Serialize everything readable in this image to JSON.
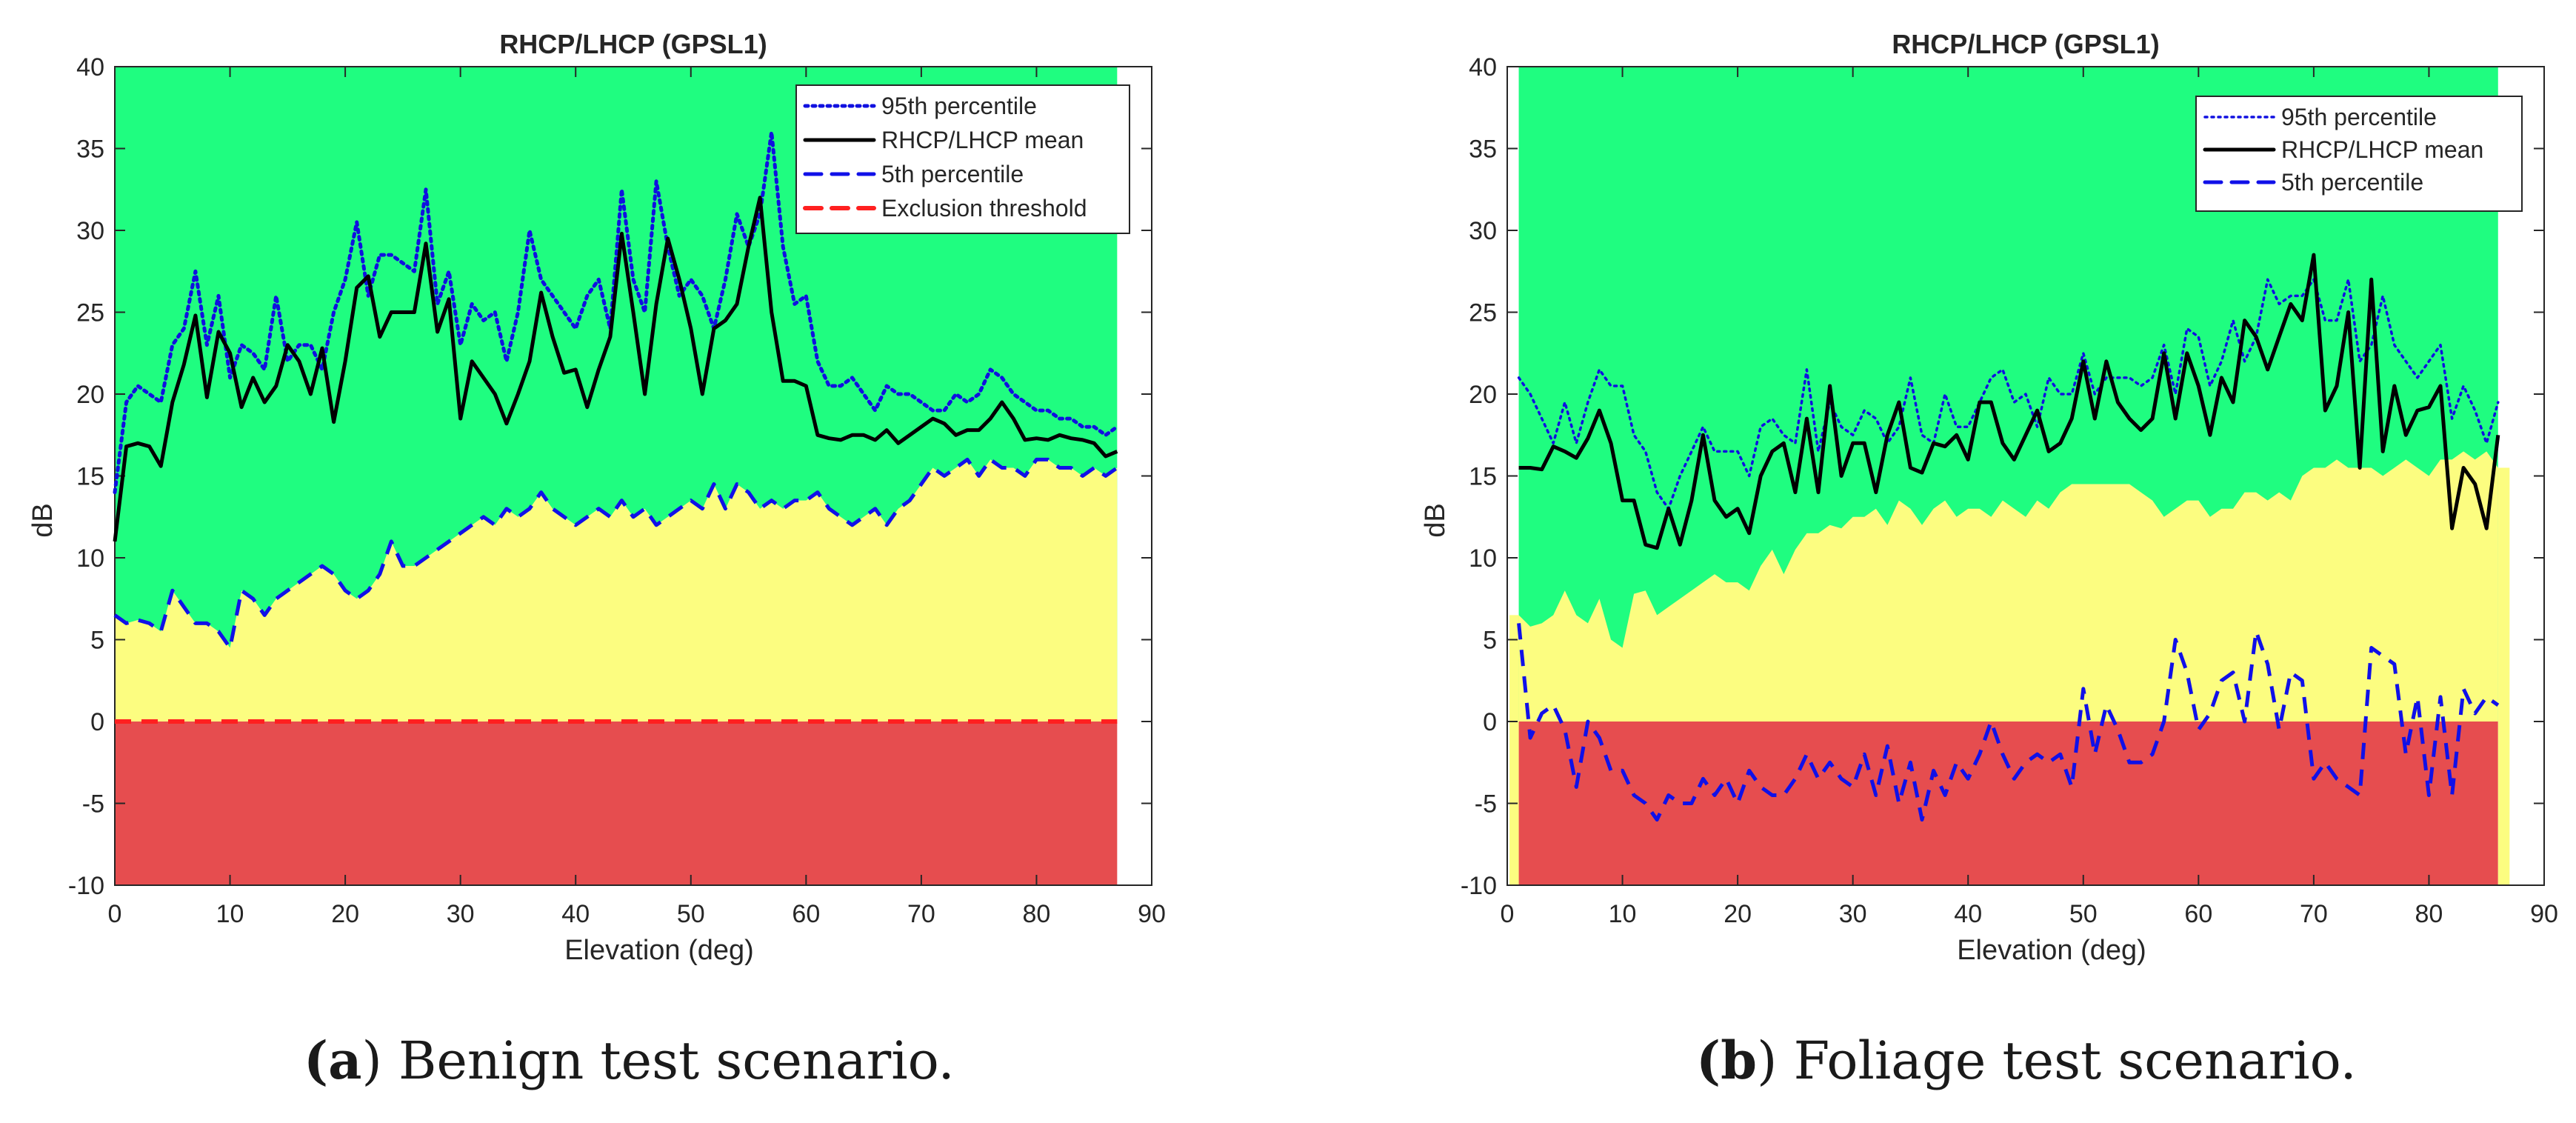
{
  "colors": {
    "green": "#1ffd80",
    "yellow": "#fcfd80",
    "red": "#e64d4f",
    "p95": "#1010e0",
    "mean": "#000000",
    "p5": "#1010e8",
    "threshold": "#ff2020"
  },
  "captions": {
    "a_letter": "(a",
    "a_text": ") Benign test scenario.",
    "b_letter": "(b",
    "b_text": ") Foliage test scenario."
  },
  "chart_data": [
    {
      "type": "line",
      "title": "RHCP/LHCP (GPSL1)",
      "xlabel": "Elevation (deg)",
      "ylabel": "dB",
      "xlim": [
        0,
        90
      ],
      "ylim": [
        -10,
        40
      ],
      "xticks": [
        "0",
        "10",
        "20",
        "30",
        "40",
        "50",
        "60",
        "70",
        "80",
        "90"
      ],
      "yticks": [
        "-10",
        "-5",
        "0",
        "5",
        "10",
        "15",
        "20",
        "25",
        "30",
        "35",
        "40"
      ],
      "legend": [
        "95th percentile",
        "RHCP/LHCP mean",
        "5th percentile",
        "Exclusion threshold"
      ],
      "legend_position": "top-right",
      "shaded_xrange": [
        0,
        87
      ],
      "threshold": 0,
      "x": [
        0,
        1,
        2,
        3,
        4,
        5,
        6,
        7,
        8,
        9,
        10,
        11,
        12,
        13,
        14,
        15,
        16,
        17,
        18,
        19,
        20,
        21,
        22,
        23,
        24,
        25,
        26,
        27,
        28,
        29,
        30,
        31,
        32,
        33,
        34,
        35,
        36,
        37,
        38,
        39,
        40,
        41,
        42,
        43,
        44,
        45,
        46,
        47,
        48,
        49,
        50,
        51,
        52,
        53,
        54,
        55,
        56,
        57,
        58,
        59,
        60,
        61,
        62,
        63,
        64,
        65,
        66,
        67,
        68,
        69,
        70,
        71,
        72,
        73,
        74,
        75,
        76,
        77,
        78,
        79,
        80,
        81,
        82,
        83,
        84,
        85,
        86,
        87
      ],
      "series": [
        {
          "name": "95th percentile",
          "style": "dotted",
          "values": [
            14,
            19.5,
            20.5,
            20,
            19.5,
            23,
            24,
            27.5,
            23,
            26,
            21,
            23,
            22.5,
            21.5,
            26,
            22,
            23,
            23,
            21.5,
            25,
            27,
            30.5,
            26,
            28.5,
            28.5,
            28,
            27.5,
            32.5,
            25.5,
            27.5,
            23,
            25.5,
            24.5,
            25,
            22,
            25,
            30,
            27,
            26,
            25,
            24,
            26,
            27,
            24,
            32.5,
            27,
            25,
            33,
            29,
            26,
            27,
            26,
            24,
            27,
            31,
            29,
            31,
            36,
            29,
            25.5,
            26,
            22,
            20.5,
            20.5,
            21,
            20,
            19,
            20.5,
            20,
            20,
            19.5,
            19,
            19,
            20,
            19.5,
            20,
            21.5,
            21,
            20,
            19.5,
            19,
            19,
            18.5,
            18.5,
            18,
            18,
            17.5,
            18
          ]
        },
        {
          "name": "RHCP/LHCP mean",
          "style": "solid",
          "values": [
            11,
            16.8,
            17,
            16.8,
            15.6,
            19.5,
            21.8,
            24.8,
            19.8,
            23.8,
            22.5,
            19.2,
            21,
            19.5,
            20.5,
            23,
            22,
            20,
            22.8,
            18.3,
            22,
            26.5,
            27.2,
            23.5,
            25,
            25,
            25,
            29.2,
            23.8,
            25.8,
            18.5,
            22,
            21,
            20,
            18.2,
            20,
            22,
            26.2,
            23.5,
            21.3,
            21.5,
            19.2,
            21.5,
            23.5,
            29.8,
            25,
            20,
            25.5,
            29.5,
            27,
            24,
            20,
            24,
            24.5,
            25.5,
            29,
            32,
            25,
            20.8,
            20.8,
            20.5,
            17.5,
            17.3,
            17.2,
            17.5,
            17.5,
            17.2,
            17.8,
            17,
            17.5,
            18,
            18.5,
            18.2,
            17.5,
            17.8,
            17.8,
            18.5,
            19.5,
            18.5,
            17.2,
            17.3,
            17.2,
            17.5,
            17.3,
            17.2,
            17,
            16.2,
            16.5
          ]
        },
        {
          "name": "5th percentile",
          "style": "dashed",
          "values": [
            6.5,
            6,
            6.2,
            6,
            5.5,
            8,
            7,
            6,
            6,
            5.5,
            4.5,
            8,
            7.5,
            6.5,
            7.5,
            8,
            8.5,
            9,
            9.5,
            9,
            8,
            7.5,
            8,
            9,
            11,
            9.5,
            9.5,
            10,
            10.5,
            11,
            11.5,
            12,
            12.5,
            12,
            13,
            12.5,
            13,
            14,
            13,
            12.5,
            12,
            12.5,
            13,
            12.5,
            13.5,
            12.5,
            13,
            12,
            12.5,
            13,
            13.5,
            13,
            14.5,
            13,
            14.5,
            14,
            13,
            13.5,
            13,
            13.5,
            13.5,
            14,
            13,
            12.5,
            12,
            12.5,
            13,
            12,
            13,
            13.5,
            14.5,
            15.5,
            15,
            15.5,
            16,
            15,
            16,
            15.5,
            15.5,
            15,
            16,
            16,
            15.5,
            15.5,
            15,
            15.5,
            15,
            15.5
          ]
        }
      ]
    },
    {
      "type": "line",
      "title": "RHCP/LHCP (GPSL1)",
      "xlabel": "Elevation (deg)",
      "ylabel": "dB",
      "xlim": [
        0,
        90
      ],
      "ylim": [
        -10,
        40
      ],
      "xticks": [
        "0",
        "10",
        "20",
        "30",
        "40",
        "50",
        "60",
        "70",
        "80",
        "90"
      ],
      "yticks": [
        "-10",
        "-5",
        "0",
        "5",
        "10",
        "15",
        "20",
        "25",
        "30",
        "35",
        "40"
      ],
      "legend": [
        "95th percentile",
        "RHCP/LHCP mean",
        "5th percentile"
      ],
      "legend_position": "top-right",
      "shaded_xrange": [
        1,
        86
      ],
      "threshold": 0,
      "x": [
        1,
        2,
        3,
        4,
        5,
        6,
        7,
        8,
        9,
        10,
        11,
        12,
        13,
        14,
        15,
        16,
        17,
        18,
        19,
        20,
        21,
        22,
        23,
        24,
        25,
        26,
        27,
        28,
        29,
        30,
        31,
        32,
        33,
        34,
        35,
        36,
        37,
        38,
        39,
        40,
        41,
        42,
        43,
        44,
        45,
        46,
        47,
        48,
        49,
        50,
        51,
        52,
        53,
        54,
        55,
        56,
        57,
        58,
        59,
        60,
        61,
        62,
        63,
        64,
        65,
        66,
        67,
        68,
        69,
        70,
        71,
        72,
        73,
        74,
        75,
        76,
        77,
        78,
        79,
        80,
        81,
        82,
        83,
        84,
        85,
        86
      ],
      "yellow_top": [
        6.5,
        5.8,
        6,
        6.5,
        8,
        6.5,
        6,
        7.5,
        5,
        4.5,
        7.8,
        8,
        6.5,
        7,
        7.5,
        8,
        8.5,
        9,
        8.5,
        8.5,
        8,
        9.5,
        10.5,
        9,
        10.5,
        11.5,
        11.5,
        12,
        11.8,
        12.5,
        12.5,
        13,
        12,
        13.5,
        13,
        12,
        13,
        13.5,
        12.5,
        13,
        13,
        12.5,
        13.5,
        13,
        12.5,
        13.5,
        13,
        14,
        14.5,
        14.5,
        14.5,
        14.5,
        14.5,
        14.5,
        14,
        13.5,
        12.5,
        13,
        13.5,
        13.5,
        12.5,
        13,
        13,
        14,
        14,
        13.5,
        14,
        13.5,
        15,
        15.5,
        15.5,
        16,
        15.5,
        15.5,
        15.5,
        15,
        15.5,
        16,
        15.5,
        15,
        16,
        16,
        16.5,
        16,
        16.5,
        15.5
      ],
      "series": [
        {
          "name": "95th percentile",
          "style": "dotted",
          "values": [
            21,
            20,
            18.5,
            17,
            19.5,
            17,
            19.5,
            21.5,
            20.5,
            20.5,
            17.5,
            16.5,
            14,
            13,
            15,
            16.5,
            18,
            16.5,
            16.5,
            16.5,
            15,
            18,
            18.5,
            17.5,
            17,
            21.5,
            16.5,
            19.5,
            18,
            17.5,
            19,
            18.5,
            17,
            18,
            21,
            17.5,
            17,
            20,
            18,
            18,
            19.5,
            21,
            21.5,
            19.5,
            20,
            18,
            21,
            20,
            20,
            22.5,
            20,
            21,
            21,
            21,
            20.5,
            21,
            23,
            20,
            24,
            23.5,
            20.5,
            22,
            24.5,
            22,
            23.5,
            27,
            25.5,
            26,
            26,
            27,
            24.5,
            24.5,
            27,
            22,
            23,
            26,
            23,
            22,
            21,
            22,
            23,
            18.5,
            20.5,
            19,
            17,
            19.5
          ]
        },
        {
          "name": "RHCP/LHCP mean",
          "style": "solid",
          "values": [
            15.5,
            15.5,
            15.4,
            16.8,
            16.5,
            16.1,
            17.3,
            19,
            17,
            13.5,
            13.5,
            10.8,
            10.6,
            13,
            10.8,
            13.5,
            17.5,
            13.5,
            12.5,
            13,
            11.5,
            15,
            16.5,
            17,
            14,
            18.5,
            14,
            20.5,
            15,
            17,
            17,
            14,
            17.5,
            19.5,
            15.5,
            15.2,
            17,
            16.8,
            17.5,
            16,
            19.5,
            19.5,
            17,
            16,
            17.5,
            19,
            16.5,
            17,
            18.5,
            22,
            18.5,
            22,
            19.5,
            18.5,
            17.8,
            18.5,
            22.5,
            18.5,
            22.5,
            20.5,
            17.5,
            21,
            19.5,
            24.5,
            23.5,
            21.5,
            23.5,
            25.5,
            24.5,
            28.5,
            19,
            20.5,
            25,
            15.5,
            27,
            16.5,
            20.5,
            17.5,
            19,
            19.2,
            20.5,
            11.8,
            15.5,
            14.5,
            11.8,
            17.5
          ]
        },
        {
          "name": "5th percentile",
          "style": "dashed",
          "values": [
            6,
            -1,
            0.5,
            1,
            -0.5,
            -4,
            0,
            -1,
            -3,
            -3,
            -4.5,
            -5,
            -6,
            -4.5,
            -5,
            -5,
            -3.5,
            -4.5,
            -3.5,
            -5,
            -3,
            -4,
            -4.5,
            -4.5,
            -3.5,
            -2,
            -3.5,
            -2.5,
            -3.5,
            -4,
            -2,
            -4.5,
            -1.5,
            -5,
            -2.5,
            -6,
            -3,
            -4.5,
            -2.5,
            -3.5,
            -2,
            0,
            -2,
            -3.5,
            -2.5,
            -2,
            -2.5,
            -2,
            -4,
            2,
            -2,
            1,
            -0.5,
            -2.5,
            -2.5,
            -2,
            0,
            5,
            3,
            -0.5,
            0.5,
            2.5,
            3,
            0,
            5.5,
            3.5,
            -0.5,
            3,
            2.5,
            -3.5,
            -2.5,
            -3.5,
            -4,
            -4.5,
            4.5,
            4,
            3.5,
            -2,
            1.5,
            -4.5,
            1.5,
            -4.5,
            2,
            0.5,
            1.5,
            1
          ]
        }
      ]
    }
  ]
}
